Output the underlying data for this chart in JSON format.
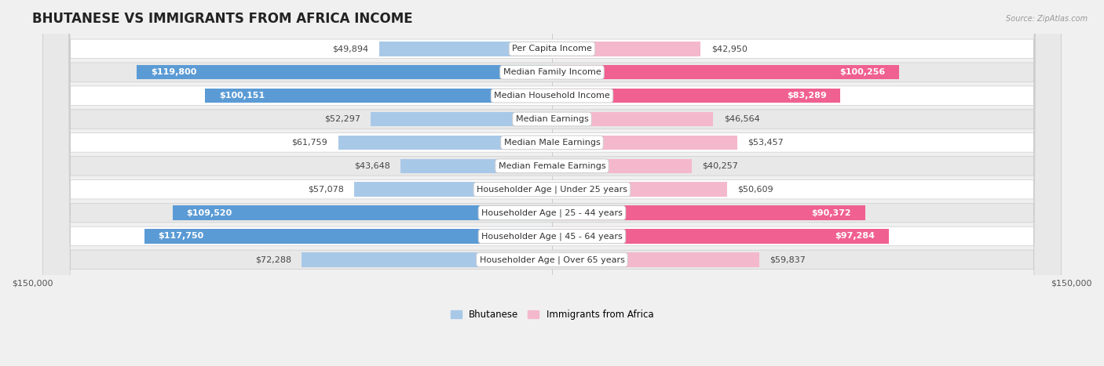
{
  "title": "BHUTANESE VS IMMIGRANTS FROM AFRICA INCOME",
  "source": "Source: ZipAtlas.com",
  "categories": [
    "Per Capita Income",
    "Median Family Income",
    "Median Household Income",
    "Median Earnings",
    "Median Male Earnings",
    "Median Female Earnings",
    "Householder Age | Under 25 years",
    "Householder Age | 25 - 44 years",
    "Householder Age | 45 - 64 years",
    "Householder Age | Over 65 years"
  ],
  "bhutanese": [
    49894,
    119800,
    100151,
    52297,
    61759,
    43648,
    57078,
    109520,
    117750,
    72288
  ],
  "africa": [
    42950,
    100256,
    83289,
    46564,
    53457,
    40257,
    50609,
    90372,
    97284,
    59837
  ],
  "bhutanese_labels": [
    "$49,894",
    "$119,800",
    "$100,151",
    "$52,297",
    "$61,759",
    "$43,648",
    "$57,078",
    "$109,520",
    "$117,750",
    "$72,288"
  ],
  "africa_labels": [
    "$42,950",
    "$100,256",
    "$83,289",
    "$46,564",
    "$53,457",
    "$40,257",
    "$50,609",
    "$90,372",
    "$97,284",
    "$59,837"
  ],
  "max_val": 150000,
  "blue_light": "#a8c8e8",
  "blue_dark": "#5b9bd5",
  "pink_light": "#f4b8cc",
  "pink_dark": "#f06090",
  "bg_color": "#f0f0f0",
  "row_white": "#ffffff",
  "row_gray": "#e8e8e8",
  "label_threshold": 75000,
  "title_fontsize": 12,
  "label_fontsize": 8,
  "cat_fontsize": 8,
  "axis_fontsize": 8
}
